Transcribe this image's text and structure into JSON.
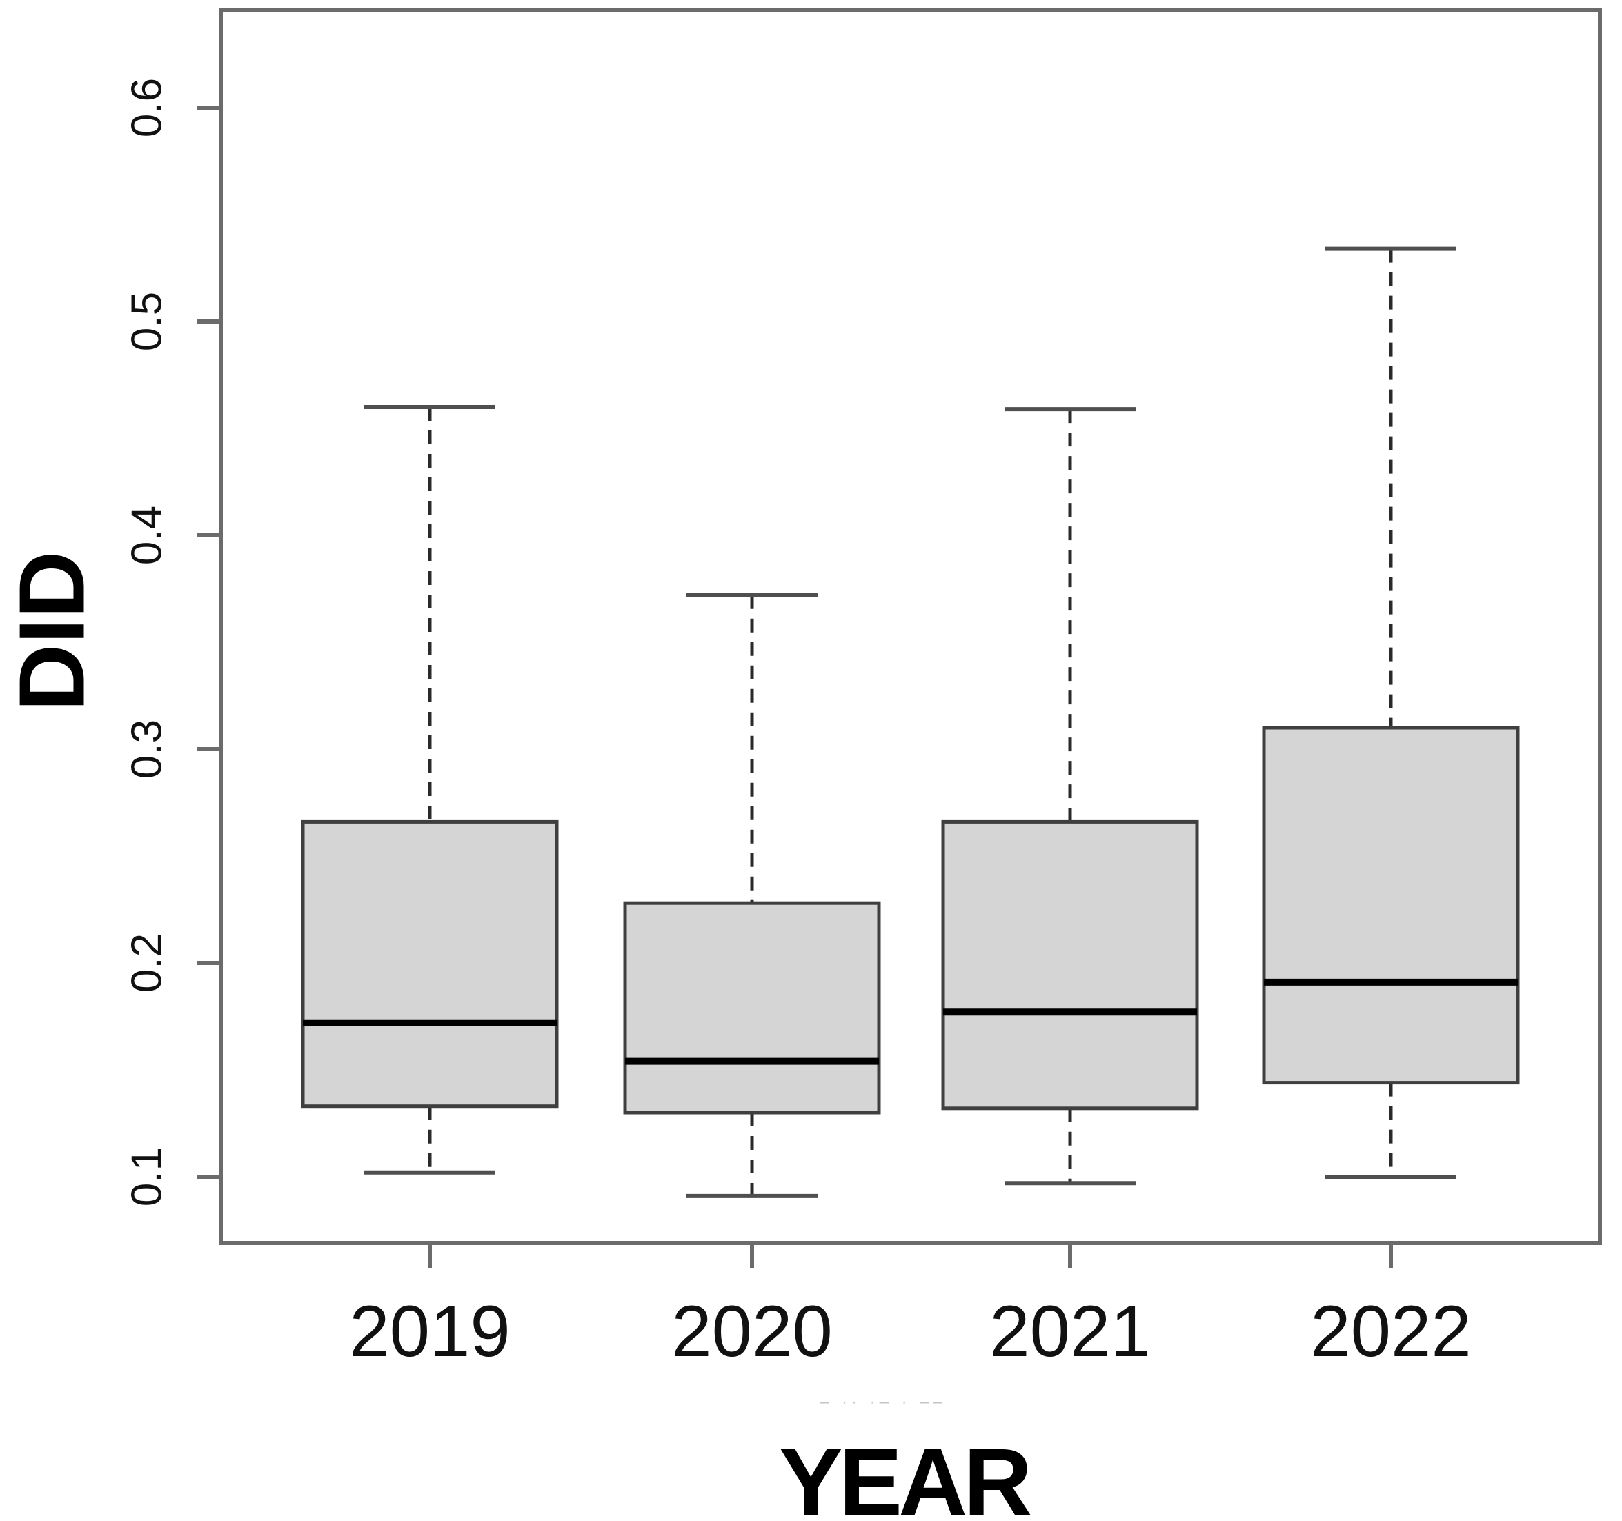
{
  "figure": {
    "background": "#ffffff"
  },
  "chart_data": {
    "type": "boxplot",
    "title": "",
    "xlabel": "YEAR",
    "ylabel": "DID",
    "categories": [
      "2019",
      "2020",
      "2021",
      "2022"
    ],
    "y_axis": {
      "tick_values": [
        0.1,
        0.2,
        0.3,
        0.4,
        0.5,
        0.6
      ],
      "tick_labels": [
        "0.1",
        "0.2",
        "0.3",
        "0.4",
        "0.5",
        "0.6"
      ],
      "range_shown": [
        0.07,
        0.645
      ],
      "label_rotation_deg": 90
    },
    "x_axis": {
      "tick_labels": [
        "2019",
        "2020",
        "2021",
        "2022"
      ]
    },
    "grid": false,
    "legend": "none",
    "series": [
      {
        "category": "2019",
        "whisker_low": 0.102,
        "q1": 0.133,
        "median": 0.172,
        "q3": 0.266,
        "whisker_high": 0.46
      },
      {
        "category": "2020",
        "whisker_low": 0.091,
        "q1": 0.13,
        "median": 0.154,
        "q3": 0.228,
        "whisker_high": 0.372
      },
      {
        "category": "2021",
        "whisker_low": 0.097,
        "q1": 0.132,
        "median": 0.177,
        "q3": 0.266,
        "whisker_high": 0.459
      },
      {
        "category": "2022",
        "whisker_low": 0.1,
        "q1": 0.144,
        "median": 0.191,
        "q3": 0.31,
        "whisker_high": 0.534
      }
    ],
    "style": {
      "box_fill": "#d5d5d5",
      "box_border": "#3f3f3f",
      "median_color": "#000000",
      "whisker_color": "#2a2a2a",
      "cap_color": "#4f4f4f",
      "frame_color": "#6b6b6b",
      "tick_color": "#6b6b6b"
    }
  },
  "artifact": {
    "text": "– ·· ·– · ––"
  }
}
